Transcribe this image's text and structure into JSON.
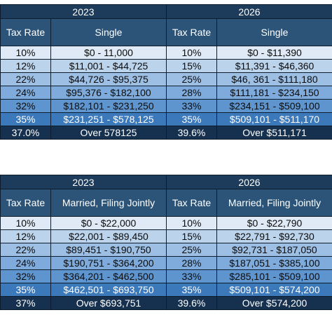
{
  "tables": [
    {
      "left_year": "2023",
      "right_year": "2026",
      "left_headers": [
        "Tax Rate",
        "Single"
      ],
      "right_headers": [
        "Tax Rate",
        "Single"
      ],
      "rows": [
        [
          "10%",
          "$0 - 11,000",
          "10%",
          "$0 - $11,390"
        ],
        [
          "12%",
          "$11,001 - $44,725",
          "15%",
          "$11,391 - $46,360"
        ],
        [
          "22%",
          "$44,726 - $95,375",
          "25%",
          "$46, 361 - $111,180"
        ],
        [
          "24%",
          "$95,376 - $182,100",
          "28%",
          "$111,181 - $234,150"
        ],
        [
          "32%",
          "$182,101 - $231,250",
          "33%",
          "$234,151 - $509,100"
        ],
        [
          "35%",
          "$231,251 - $578,125",
          "35%",
          "$509,101 - $511,170"
        ],
        [
          "37.0%",
          "Over 578125",
          "39.6%",
          "Over $511,171"
        ]
      ]
    },
    {
      "left_year": "2023",
      "right_year": "2026",
      "left_headers": [
        "Tax Rate",
        "Married, Filing Jointly"
      ],
      "right_headers": [
        "Tax Rate",
        "Married, Filing Jointly"
      ],
      "rows": [
        [
          "10%",
          "$0 - $22,000",
          "10%",
          "$0 - $22,790"
        ],
        [
          "12%",
          "$22,001 - $89,450",
          "15%",
          "$22,791 - $92,730"
        ],
        [
          "22%",
          "$89,451 - $190,750",
          "25%",
          "$92,731 - $187,050"
        ],
        [
          "24%",
          "$190,751 - $364,200",
          "28%",
          "$187,051 - $385,100"
        ],
        [
          "32%",
          "$364,201 - $462,500",
          "33%",
          "$285,101 - $509,100"
        ],
        [
          "35%",
          "$462,501 - $693,750",
          "35%",
          "$509,101 - $574,200"
        ],
        [
          "37%",
          "Over $693,751",
          "39.6%",
          "Over $574,200"
        ]
      ]
    }
  ]
}
